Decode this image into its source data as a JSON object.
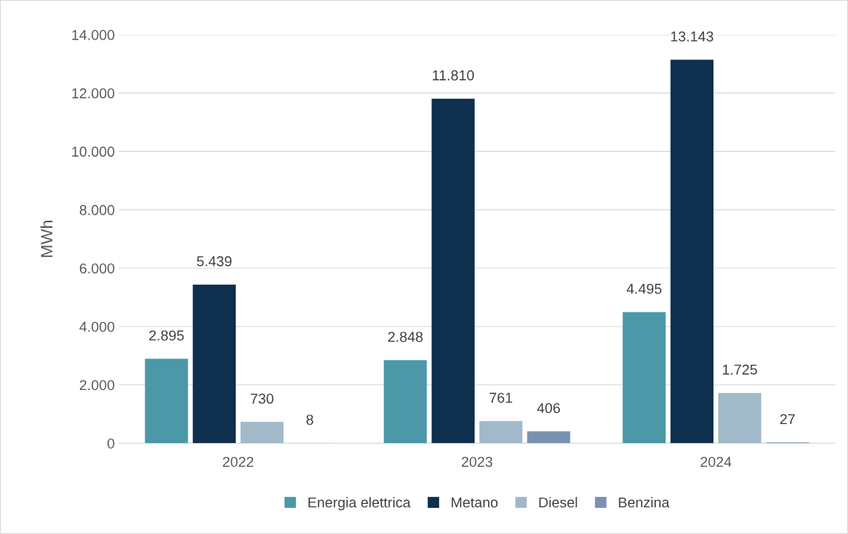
{
  "chart_data": {
    "type": "bar",
    "ylabel": "MWh",
    "categories": [
      "2022",
      "2023",
      "2024"
    ],
    "series": [
      {
        "name": "Energia elettrica",
        "color": "#4a98a8",
        "values": [
          2895,
          2848,
          4495
        ],
        "value_labels": [
          "2.895",
          "2.848",
          "4.495"
        ]
      },
      {
        "name": "Metano",
        "color": "#0f2f4f",
        "values": [
          5439,
          11810,
          13143
        ],
        "value_labels": [
          "5.439",
          "11.810",
          "13.143"
        ]
      },
      {
        "name": "Diesel",
        "color": "#a2b9c9",
        "values": [
          730,
          761,
          1725
        ],
        "value_labels": [
          "730",
          "761",
          "1.725"
        ]
      },
      {
        "name": "Benzina",
        "color": "#7891b0",
        "values": [
          8,
          406,
          27
        ],
        "value_labels": [
          "8",
          "406",
          "27"
        ]
      }
    ],
    "ylim": [
      0,
      14000
    ],
    "yticks": [
      {
        "value": 0,
        "label": "0"
      },
      {
        "value": 2000,
        "label": "2.000"
      },
      {
        "value": 4000,
        "label": "4.000"
      },
      {
        "value": 6000,
        "label": "6.000"
      },
      {
        "value": 8000,
        "label": "8.000"
      },
      {
        "value": 10000,
        "label": "10.000"
      },
      {
        "value": 12000,
        "label": "12.000"
      },
      {
        "value": 14000,
        "label": "14.000"
      }
    ],
    "grid": "y",
    "legend": "bottom"
  }
}
